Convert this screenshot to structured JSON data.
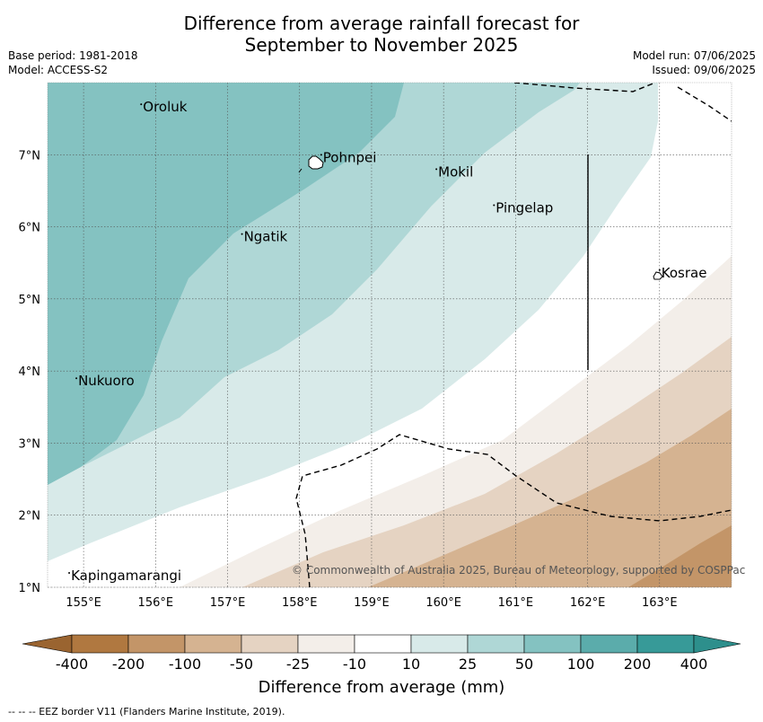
{
  "title_line1": "Difference from average rainfall forecast for",
  "title_line2": "September to November 2025",
  "meta": {
    "base_period": "Base period: 1981-2018",
    "model": "Model: ACCESS-S2",
    "model_run": "Model run: 07/06/2025",
    "issued": "Issued: 09/06/2025"
  },
  "map": {
    "lon_range": [
      154.5,
      164.0
    ],
    "lat_range": [
      1.0,
      8.0
    ],
    "lon_ticks": [
      "155°E",
      "156°E",
      "157°E",
      "158°E",
      "159°E",
      "160°E",
      "161°E",
      "162°E",
      "163°E"
    ],
    "lat_ticks": [
      "1°N",
      "2°N",
      "3°N",
      "4°N",
      "5°N",
      "6°N",
      "7°N"
    ],
    "places": [
      {
        "name": "Oroluk",
        "lon": 155.8,
        "lat": 7.6
      },
      {
        "name": "Pohnpei",
        "lon": 158.3,
        "lat": 6.9
      },
      {
        "name": "Mokil",
        "lon": 159.9,
        "lat": 6.7
      },
      {
        "name": "Pingelap",
        "lon": 160.7,
        "lat": 6.2
      },
      {
        "name": "Ngatik",
        "lon": 157.2,
        "lat": 5.8
      },
      {
        "name": "Kosrae",
        "lon": 163.0,
        "lat": 5.3
      },
      {
        "name": "Nukuoro",
        "lon": 154.9,
        "lat": 3.8
      },
      {
        "name": "Kapingamarangi",
        "lon": 154.8,
        "lat": 1.1
      }
    ],
    "copyright": "© Commonwealth of Australia 2025, Bureau of Meteorology, supported by COSPPac"
  },
  "colorbar": {
    "labels": [
      "-400",
      "-200",
      "-100",
      "-50",
      "-25",
      "-10",
      "10",
      "25",
      "50",
      "100",
      "200",
      "400"
    ],
    "colors": [
      "#b07840",
      "#c39568",
      "#d5b391",
      "#e5d3c2",
      "#f3eee9",
      "#ffffff",
      "#d8eae9",
      "#afd7d6",
      "#84c2c1",
      "#5bacab",
      "#379a98"
    ],
    "title": "Difference from average (mm)"
  },
  "footnote": "--  --  -- EEZ border V11 (Flanders Marine Institute, 2019)."
}
